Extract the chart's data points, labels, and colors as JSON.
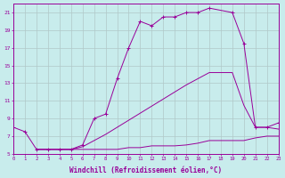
{
  "xlabel": "Windchill (Refroidissement éolien,°C)",
  "bg_color": "#c8ecec",
  "line_color": "#990099",
  "xlim": [
    0,
    23
  ],
  "ylim": [
    5,
    22
  ],
  "xticks": [
    0,
    1,
    2,
    3,
    4,
    5,
    6,
    7,
    8,
    9,
    10,
    11,
    12,
    13,
    14,
    15,
    16,
    17,
    18,
    19,
    20,
    21,
    22,
    23
  ],
  "yticks": [
    5,
    7,
    9,
    11,
    13,
    15,
    17,
    19,
    21
  ],
  "grid_color": "#b0c8c8",
  "line1_x": [
    0,
    1,
    2,
    3,
    4,
    5,
    6,
    7,
    8,
    9,
    10,
    11,
    12,
    13,
    14,
    15,
    16,
    17,
    19,
    20,
    21,
    22,
    23
  ],
  "line1_y": [
    8.0,
    7.5,
    5.5,
    5.5,
    5.5,
    5.5,
    6.0,
    9.0,
    9.5,
    13.5,
    17.0,
    20.0,
    19.5,
    20.5,
    20.5,
    21.0,
    21.0,
    21.5,
    21.0,
    17.5,
    8.0,
    8.0,
    8.5
  ],
  "line2_x": [
    2,
    3,
    4,
    5,
    6,
    7,
    8,
    9,
    10,
    11,
    12,
    13,
    14,
    15,
    16,
    17,
    19,
    20,
    21,
    22,
    23
  ],
  "line2_y": [
    5.5,
    5.5,
    5.5,
    5.5,
    5.8,
    6.5,
    7.2,
    8.0,
    8.8,
    9.6,
    10.4,
    11.2,
    12.0,
    12.8,
    13.5,
    14.2,
    14.2,
    10.5,
    8.0,
    8.0,
    7.8
  ],
  "line3_x": [
    2,
    3,
    4,
    5,
    6,
    7,
    8,
    9,
    10,
    11,
    12,
    13,
    14,
    15,
    16,
    17,
    19,
    20,
    21,
    22,
    23
  ],
  "line3_y": [
    5.5,
    5.5,
    5.5,
    5.5,
    5.5,
    5.5,
    5.5,
    5.5,
    5.7,
    5.7,
    5.9,
    5.9,
    5.9,
    6.0,
    6.2,
    6.5,
    6.5,
    6.5,
    6.8,
    7.0,
    7.0
  ]
}
